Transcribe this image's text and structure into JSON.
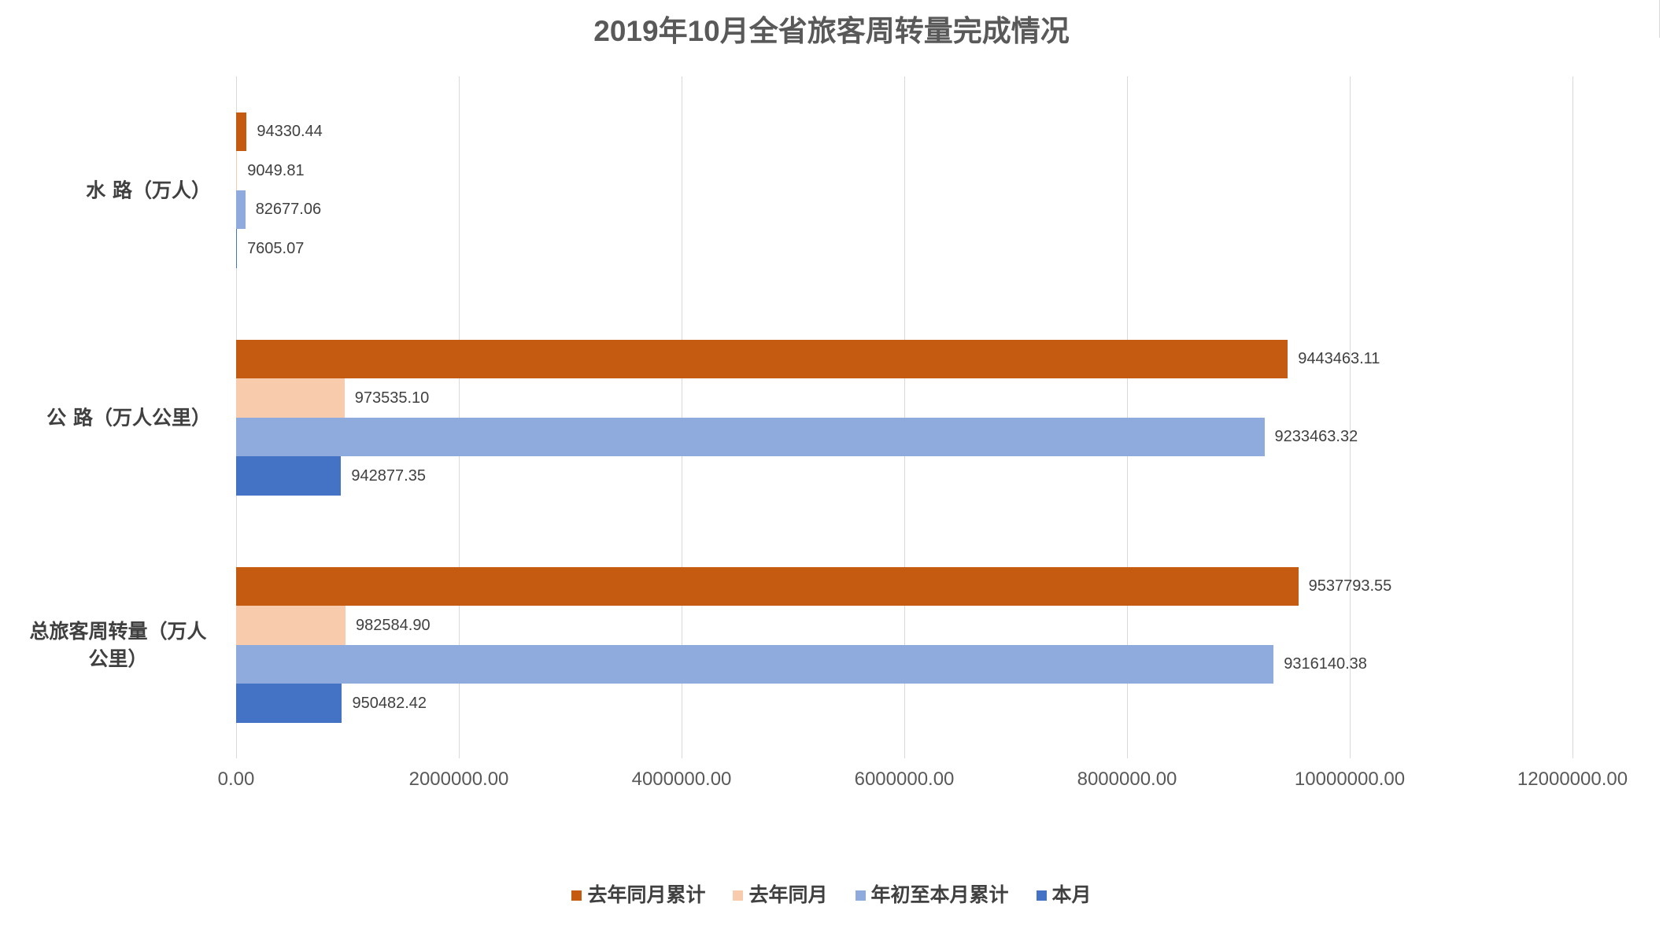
{
  "chart_data": {
    "type": "bar",
    "orientation": "horizontal",
    "title": "2019年10月全省旅客周转量完成情况",
    "categories": [
      "水 路（万人）",
      "公 路（万人公里）",
      "总旅客周转量（万人公里）"
    ],
    "series": [
      {
        "name": "去年同月累计",
        "color": "#C55A11",
        "values": [
          94330.44,
          9443463.11,
          9537793.55
        ]
      },
      {
        "name": "去年同月",
        "color": "#F8CBAD",
        "values": [
          9049.81,
          973535.1,
          982584.9
        ]
      },
      {
        "name": "年初至本月累计",
        "color": "#8FAADC",
        "values": [
          82677.06,
          9233463.32,
          9316140.38
        ]
      },
      {
        "name": "本月",
        "color": "#4472C4",
        "values": [
          7605.07,
          942877.35,
          950482.42
        ]
      }
    ],
    "xlim": [
      0,
      12000000
    ],
    "xticks": [
      0,
      2000000,
      4000000,
      6000000,
      8000000,
      10000000,
      12000000
    ],
    "grid": true,
    "legend": "bottom",
    "data_labels": true
  }
}
